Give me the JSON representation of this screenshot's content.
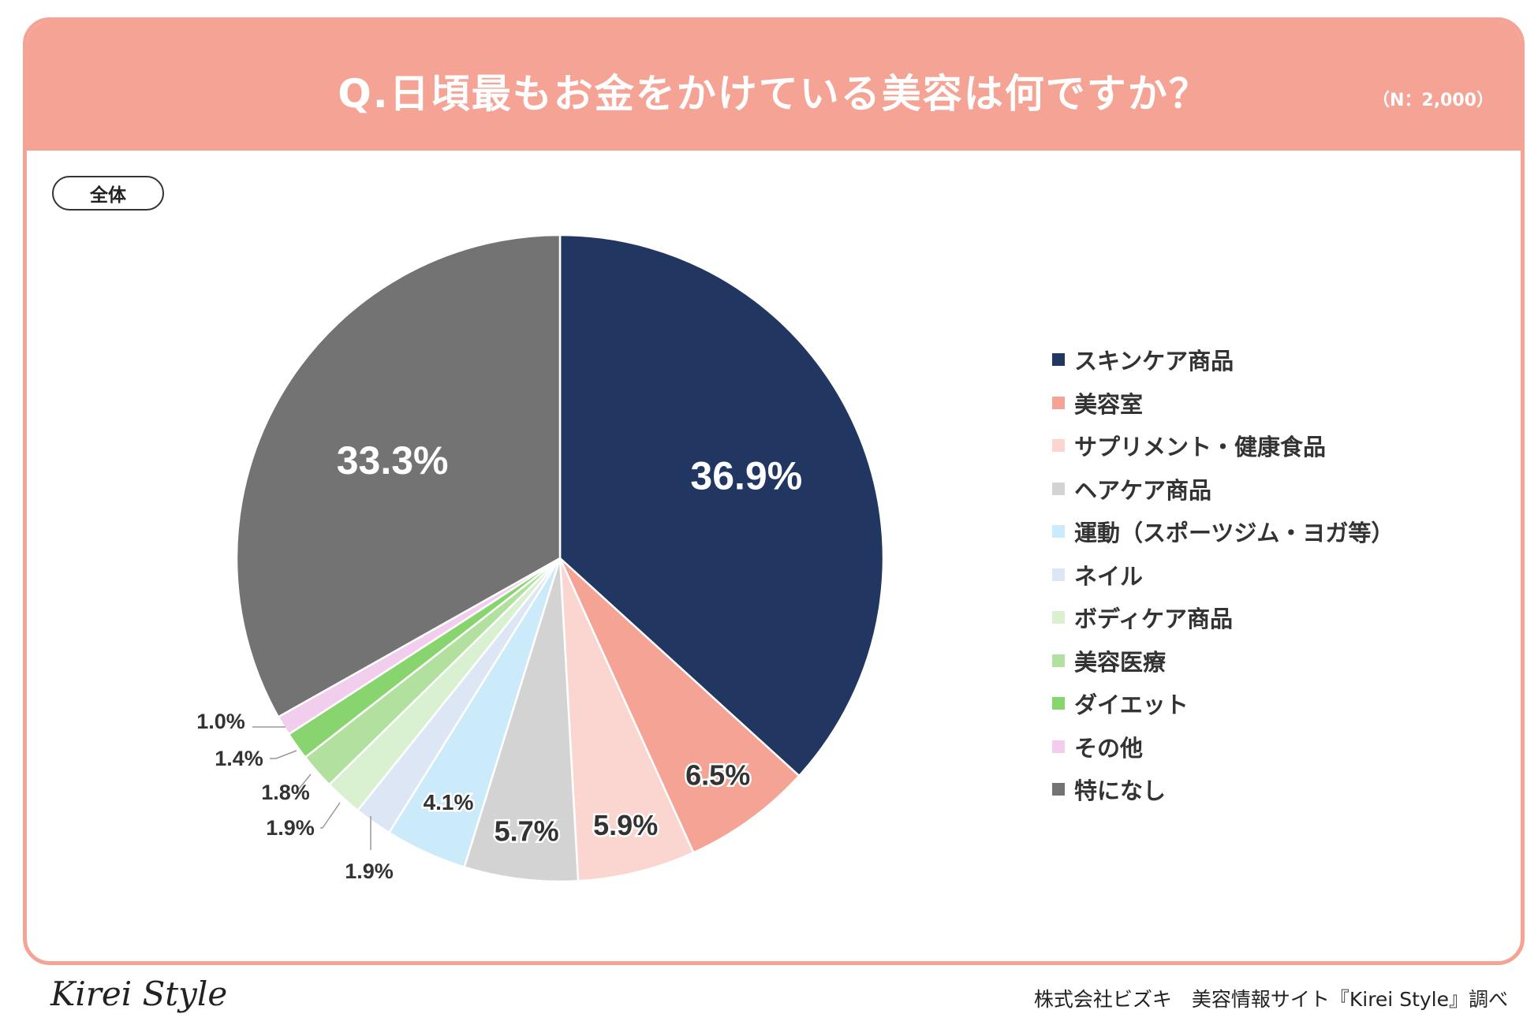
{
  "header": {
    "title": "Q.日頃最もお金をかけている美容は何ですか？",
    "sample_size": "（N：2,000）"
  },
  "segment_label": "全体",
  "chart_data": {
    "type": "pie",
    "title": "Q.日頃最もお金をかけている美容は何ですか？",
    "legend_position": "right",
    "slices": [
      {
        "label": "スキンケア商品",
        "value": 36.9,
        "display": "36.9%",
        "color": "#213761"
      },
      {
        "label": "美容室",
        "value": 6.5,
        "display": "6.5%",
        "color": "#f4a394"
      },
      {
        "label": "サプリメント・健康食品",
        "value": 5.9,
        "display": "5.9%",
        "color": "#fbd6d0"
      },
      {
        "label": "ヘアケア商品",
        "value": 5.7,
        "display": "5.7%",
        "color": "#d3d3d3"
      },
      {
        "label": "運動（スポーツジム・ヨガ等）",
        "value": 4.1,
        "display": "4.1%",
        "color": "#cbeafa"
      },
      {
        "label": "ネイル",
        "value": 1.9,
        "display": "1.9%",
        "color": "#dce6f4"
      },
      {
        "label": "ボディケア商品",
        "value": 1.9,
        "display": "1.9%",
        "color": "#d9f1d1"
      },
      {
        "label": "美容医療",
        "value": 1.8,
        "display": "1.8%",
        "color": "#b2e09f"
      },
      {
        "label": "ダイエット",
        "value": 1.4,
        "display": "1.4%",
        "color": "#88d46f"
      },
      {
        "label": "その他",
        "value": 1.0,
        "display": "1.0%",
        "color": "#f1cdee"
      },
      {
        "label": "特になし",
        "value": 33.3,
        "display": "33.3%",
        "color": "#737373"
      }
    ]
  },
  "footer": {
    "logo": "Kirei Style",
    "credit": "株式会社ビズキ　美容情報サイト『Kirei Style』調べ"
  }
}
